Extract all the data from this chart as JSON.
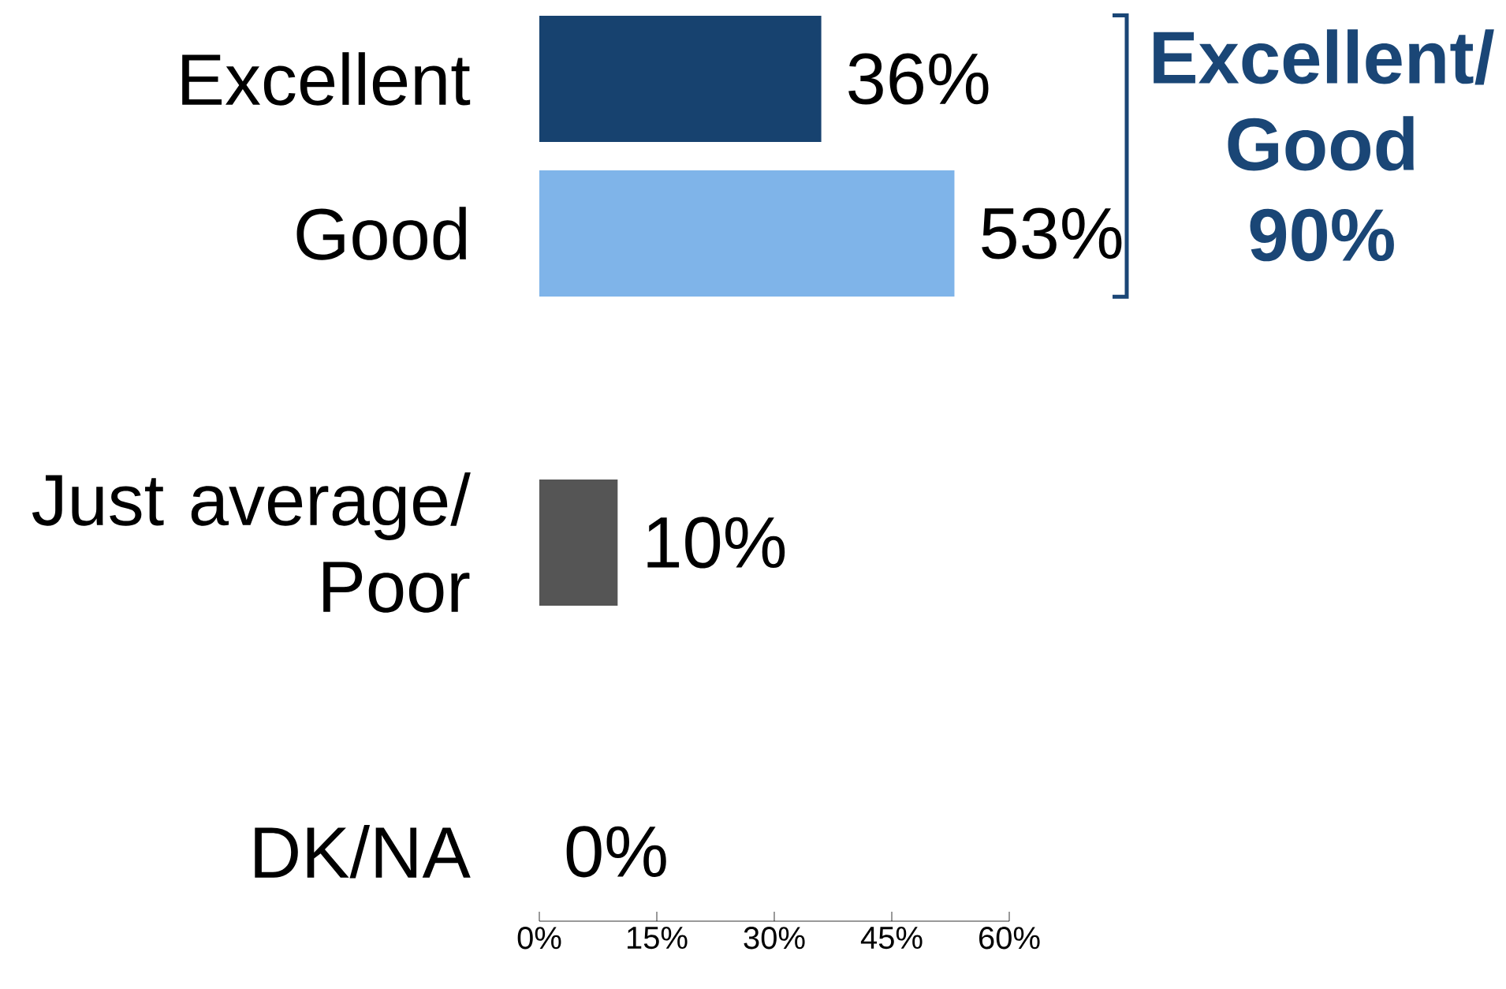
{
  "chart_data": {
    "type": "bar",
    "orientation": "horizontal",
    "categories": [
      "Excellent",
      "Good",
      null,
      "Just average/ Poor",
      null,
      "DK/NA"
    ],
    "values": [
      36,
      53,
      null,
      10,
      null,
      0
    ],
    "colors": [
      "#17426f",
      "#7fb4e9",
      null,
      "#555555",
      null,
      "#555555"
    ],
    "value_labels": [
      "36%",
      "53%",
      null,
      "10%",
      null,
      "0%"
    ],
    "xlim": [
      0,
      60
    ],
    "xticks": [
      {
        "value": 0,
        "label": "0%"
      },
      {
        "value": 15,
        "label": "15%"
      },
      {
        "value": 30,
        "label": "30%"
      },
      {
        "value": 45,
        "label": "45%"
      },
      {
        "value": 60,
        "label": "60%"
      }
    ],
    "annotations": [
      "Excellent/ Good",
      "90%"
    ]
  }
}
